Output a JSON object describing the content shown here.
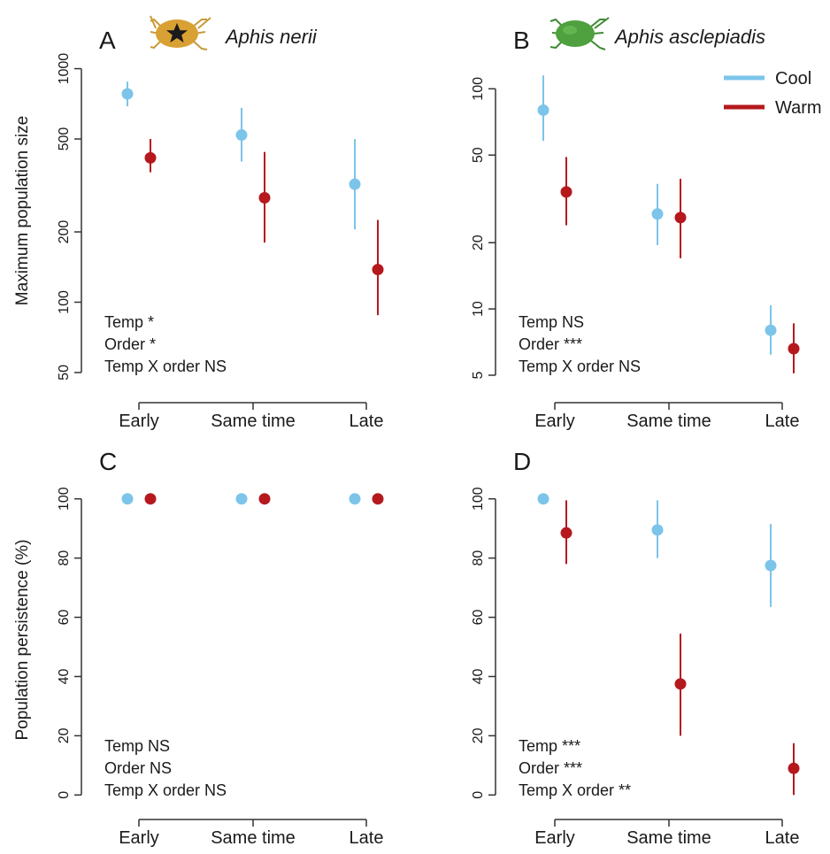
{
  "y_axis_labels": {
    "top": "Maximum population size",
    "bottom": "Population persistence (%)"
  },
  "legend": [
    {
      "label": "Cool",
      "color": "#7cc4ea"
    },
    {
      "label": "Warm",
      "color": "#b5191d"
    }
  ],
  "colors": {
    "cool": "#7cc4ea",
    "warm": "#b5191d",
    "axis": "#333333",
    "star_bug": "#d9a033",
    "green_bug": "#4fa13f"
  },
  "icons": {
    "A": "aphid-yellow-star-icon",
    "B": "aphid-green-icon"
  },
  "chart_data": [
    {
      "panel": "A",
      "title": "Aphis nerii",
      "type": "scatter",
      "scale": "log",
      "ylim": [
        45,
        1050
      ],
      "yticks": [
        50,
        100,
        200,
        500,
        1000
      ],
      "categories": [
        "Early",
        "Same time",
        "Late"
      ],
      "series": [
        {
          "name": "Cool",
          "values": [
            780,
            520,
            320
          ],
          "lower": [
            690,
            400,
            205
          ],
          "upper": [
            880,
            680,
            500
          ]
        },
        {
          "name": "Warm",
          "values": [
            415,
            280,
            138
          ],
          "lower": [
            360,
            180,
            88
          ],
          "upper": [
            500,
            440,
            225
          ]
        }
      ],
      "stats": [
        "Temp *",
        "Order *",
        "Temp X order NS"
      ]
    },
    {
      "panel": "B",
      "title": "Aphis asclepiadis",
      "type": "scatter",
      "scale": "log",
      "ylim": [
        4.6,
        130
      ],
      "yticks": [
        5,
        10,
        20,
        50,
        100
      ],
      "categories": [
        "Early",
        "Same time",
        "Late"
      ],
      "series": [
        {
          "name": "Cool",
          "values": [
            80,
            27,
            8
          ],
          "lower": [
            58,
            19.5,
            6.2
          ],
          "upper": [
            115,
            37,
            10.4
          ]
        },
        {
          "name": "Warm",
          "values": [
            34,
            26,
            6.6
          ],
          "lower": [
            24,
            17,
            5.1
          ],
          "upper": [
            49,
            39,
            8.6
          ]
        }
      ],
      "stats": [
        "Temp NS",
        "Order ***",
        "Temp X order NS"
      ]
    },
    {
      "panel": "C",
      "title": "",
      "type": "scatter",
      "scale": "linear",
      "ylim": [
        -2,
        102
      ],
      "yticks": [
        0,
        20,
        40,
        60,
        80,
        100
      ],
      "categories": [
        "Early",
        "Same time",
        "Late"
      ],
      "series": [
        {
          "name": "Cool",
          "values": [
            100,
            100,
            100
          ],
          "lower": [
            100,
            100,
            100
          ],
          "upper": [
            100,
            100,
            100
          ]
        },
        {
          "name": "Warm",
          "values": [
            100,
            100,
            100
          ],
          "lower": [
            100,
            100,
            100
          ],
          "upper": [
            100,
            100,
            100
          ]
        }
      ],
      "stats": [
        "Temp NS",
        "Order NS",
        "Temp X order NS"
      ]
    },
    {
      "panel": "D",
      "title": "",
      "type": "scatter",
      "scale": "linear",
      "ylim": [
        -2,
        102
      ],
      "yticks": [
        0,
        20,
        40,
        60,
        80,
        100
      ],
      "categories": [
        "Early",
        "Same time",
        "Late"
      ],
      "series": [
        {
          "name": "Cool",
          "values": [
            100,
            89.5,
            77.5
          ],
          "lower": [
            100,
            80,
            63.5
          ],
          "upper": [
            100,
            99.5,
            91.5
          ]
        },
        {
          "name": "Warm",
          "values": [
            88.5,
            37.5,
            9
          ],
          "lower": [
            78,
            20,
            0
          ],
          "upper": [
            99.5,
            54.5,
            17.5
          ]
        }
      ],
      "stats": [
        "Temp ***",
        "Order ***",
        "Temp X order **"
      ]
    }
  ]
}
